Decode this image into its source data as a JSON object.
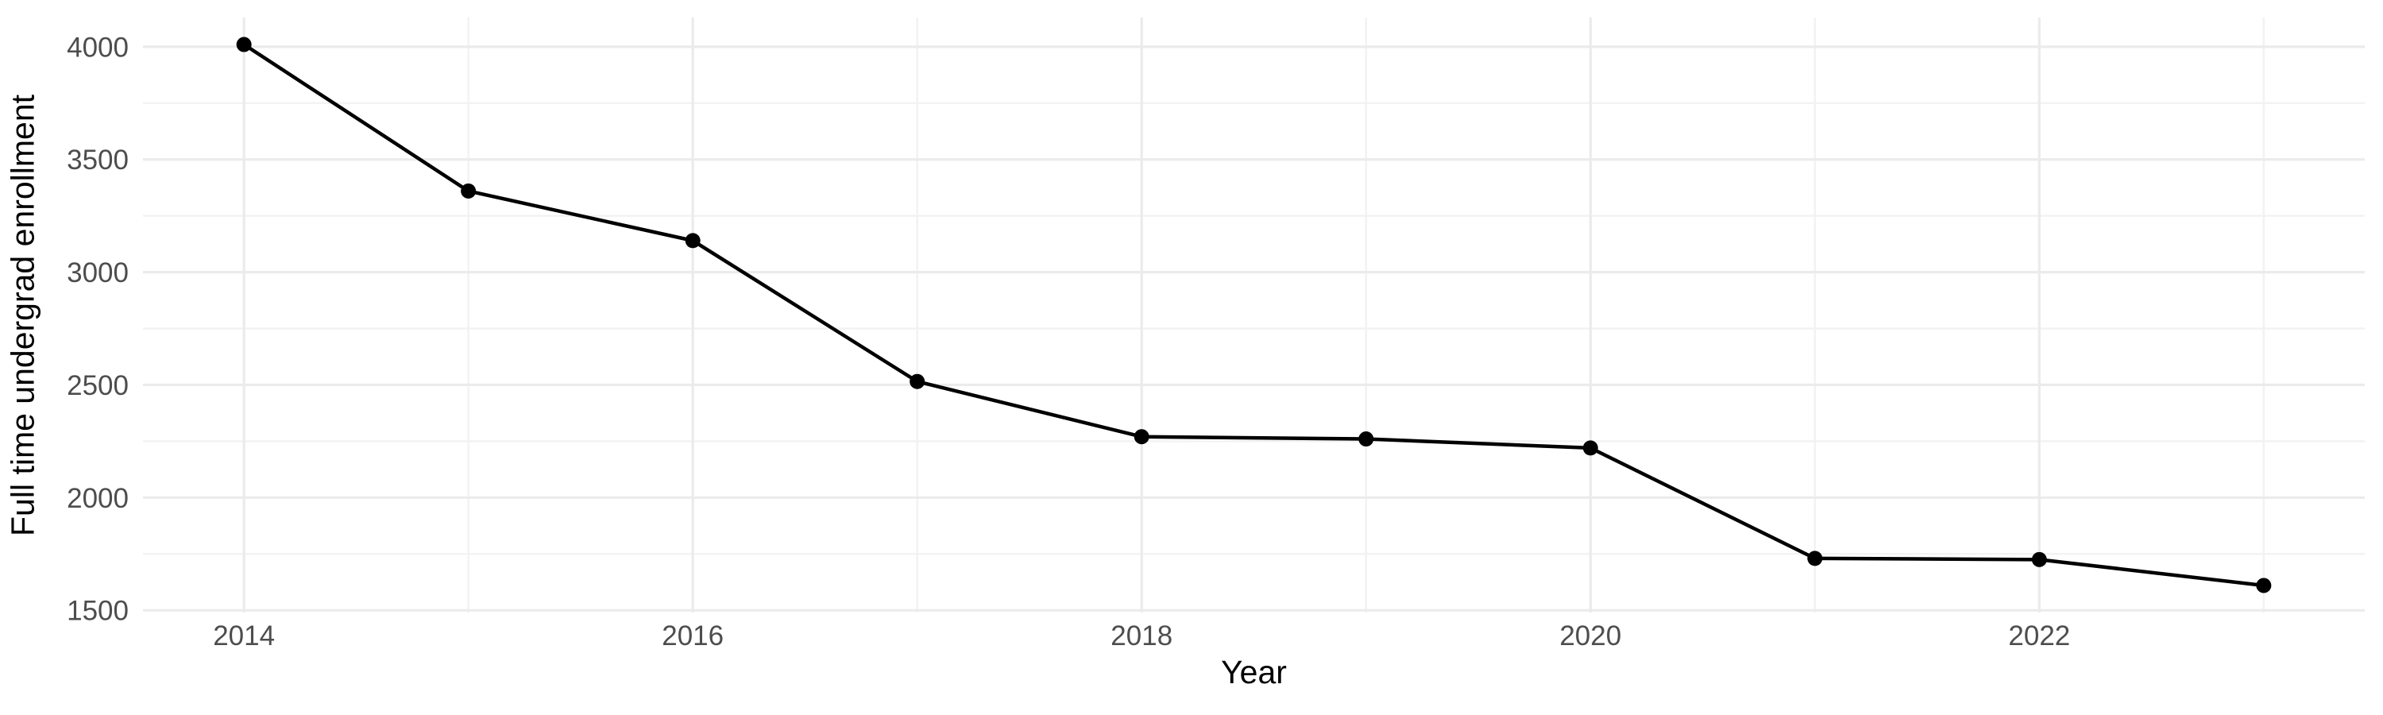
{
  "chart_data": {
    "type": "line",
    "title": "",
    "xlabel": "Year",
    "ylabel": "Full time undergrad enrollment",
    "x": [
      2014,
      2015,
      2016,
      2017,
      2018,
      2019,
      2020,
      2021,
      2022,
      2023
    ],
    "values": [
      4010,
      3360,
      3140,
      2515,
      2270,
      2260,
      2220,
      1730,
      1725,
      1610
    ],
    "x_ticks_major": [
      2014,
      2016,
      2018,
      2020,
      2022
    ],
    "x_ticks_minor": [
      2015,
      2017,
      2019,
      2021,
      2023
    ],
    "y_ticks_major": [
      1500,
      2000,
      2500,
      3000,
      3500,
      4000
    ],
    "y_ticks_minor": [
      1750,
      2250,
      2750,
      3250,
      3750
    ],
    "xlim": [
      2013.55,
      2023.45
    ],
    "ylim": [
      1490,
      4130
    ],
    "grid": true,
    "legend": "none",
    "marker": "point",
    "style": {
      "line_color": "#000000",
      "point_color": "#000000",
      "grid_major_color": "#EBEBEB",
      "grid_minor_color": "#F2F2F2",
      "tick_label_color": "#4D4D4D",
      "axis_title_color": "#000000",
      "background": "#FFFFFF"
    }
  }
}
